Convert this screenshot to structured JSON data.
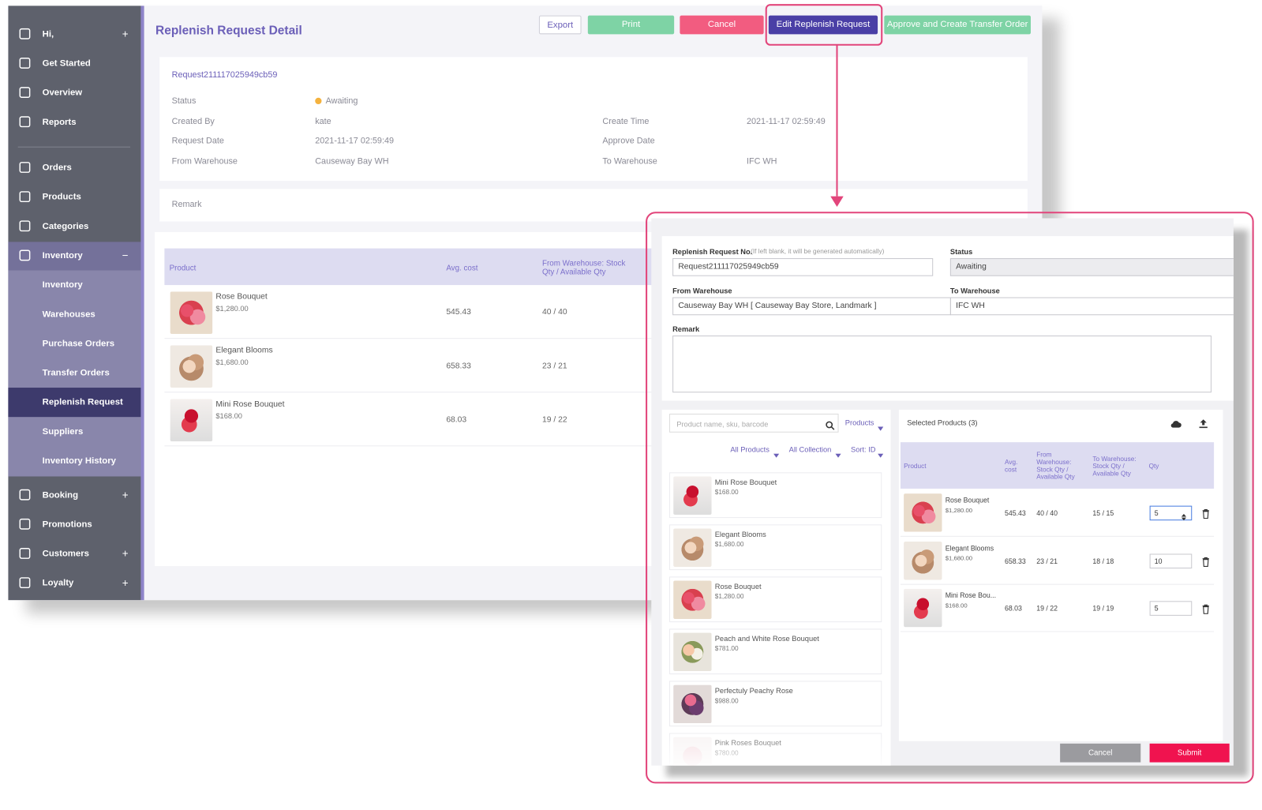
{
  "sidebar": {
    "items": [
      {
        "label": "Hi,",
        "toggle": "+"
      },
      {
        "label": "Get Started"
      },
      {
        "label": "Overview"
      },
      {
        "label": "Reports"
      },
      {
        "label": "Orders"
      },
      {
        "label": "Products"
      },
      {
        "label": "Categories"
      },
      {
        "label": "Inventory",
        "toggle": "−",
        "children": [
          {
            "label": "Inventory"
          },
          {
            "label": "Warehouses"
          },
          {
            "label": "Purchase Orders"
          },
          {
            "label": "Transfer Orders"
          },
          {
            "label": "Replenish Request",
            "active": true
          },
          {
            "label": "Suppliers"
          },
          {
            "label": "Inventory History"
          }
        ]
      },
      {
        "label": "Booking",
        "toggle": "+"
      },
      {
        "label": "Promotions"
      },
      {
        "label": "Customers",
        "toggle": "+"
      },
      {
        "label": "Loyalty",
        "toggle": "+"
      }
    ]
  },
  "page": {
    "title": "Replenish Request Detail",
    "actions": [
      "Export",
      "Print",
      "Cancel",
      "Edit Replenish Request",
      "Approve and Create Transfer Order"
    ],
    "request_no": "Request211117025949cb59",
    "fields": [
      {
        "label": "Status",
        "value": "Awaiting"
      },
      {
        "label": "Created By",
        "value": "kate"
      },
      {
        "label": "Create Time",
        "value": "2021-11-17 02:59:49"
      },
      {
        "label": "Request Date",
        "value": "2021-11-17 02:59:49"
      },
      {
        "label": "Approve Date"
      },
      {
        "label": "From Warehouse",
        "value": "Causeway Bay WH"
      },
      {
        "label": "To Warehouse",
        "value": "IFC WH"
      }
    ],
    "remark_label": "Remark",
    "table": {
      "columns": [
        "Product",
        "Avg. cost",
        "From Warehouse: Stock Qty / Available Qty"
      ],
      "rows": [
        {
          "name": "Rose Bouquet",
          "price": "$1,280.00",
          "avg_cost": "545.43",
          "stock": "40 / 40"
        },
        {
          "name": "Elegant Blooms",
          "price": "$1,680.00",
          "avg_cost": "658.33",
          "stock": "23 / 21"
        },
        {
          "name": "Mini Rose Bouquet",
          "price": "$168.00",
          "avg_cost": "68.03",
          "stock": "19 / 22"
        }
      ]
    }
  },
  "dialog": {
    "fields": [
      {
        "label": "Replenish Request No.",
        "hint": "(If left blank, it will be generated automatically)",
        "value": "Request211117025949cb59"
      },
      {
        "label": "Status",
        "value": "Awaiting"
      },
      {
        "label": "From Warehouse",
        "value": "Causeway Bay WH [ Causeway Bay Store, Landmark ]"
      },
      {
        "label": "To Warehouse",
        "value": "IFC WH"
      },
      {
        "label": "Remark"
      }
    ],
    "search_placeholder": "Product name, sku, barcode",
    "search_scope": "Products",
    "filters": [
      "All Products",
      "All Collection",
      "Sort: ID"
    ],
    "catalog": [
      {
        "name": "Mini Rose Bouquet",
        "price": "$168.00"
      },
      {
        "name": "Elegant Blooms",
        "price": "$1,680.00"
      },
      {
        "name": "Rose Bouquet",
        "price": "$1,280.00"
      },
      {
        "name": "Peach and White Rose Bouquet",
        "price": "$781.00"
      },
      {
        "name": "Perfectuly Peachy Rose",
        "price": "$988.00"
      },
      {
        "name": "Pink Roses Bouquet",
        "price": "$780.00"
      }
    ],
    "selected": {
      "title": "Selected Products (3)",
      "columns": [
        "Product",
        "Avg. cost",
        "From Warehouse: Stock Qty / Available Qty",
        "To Warehouse: Stock Qty / Available Qty",
        "Qty"
      ],
      "rows": [
        {
          "name": "Rose Bouquet",
          "price": "$1,280.00",
          "avg_cost": "545.43",
          "from_stock": "40 / 40",
          "to_stock": "15 / 15",
          "qty": "5"
        },
        {
          "name": "Elegant Blooms",
          "price": "$1,680.00",
          "avg_cost": "658.33",
          "from_stock": "23 / 21",
          "to_stock": "18 / 18",
          "qty": "10"
        },
        {
          "name": "Mini Rose Bou...",
          "price": "$168.00",
          "avg_cost": "68.03",
          "from_stock": "19 / 22",
          "to_stock": "19 / 19",
          "qty": "5"
        }
      ]
    },
    "buttons": [
      "Cancel",
      "Submit"
    ]
  }
}
